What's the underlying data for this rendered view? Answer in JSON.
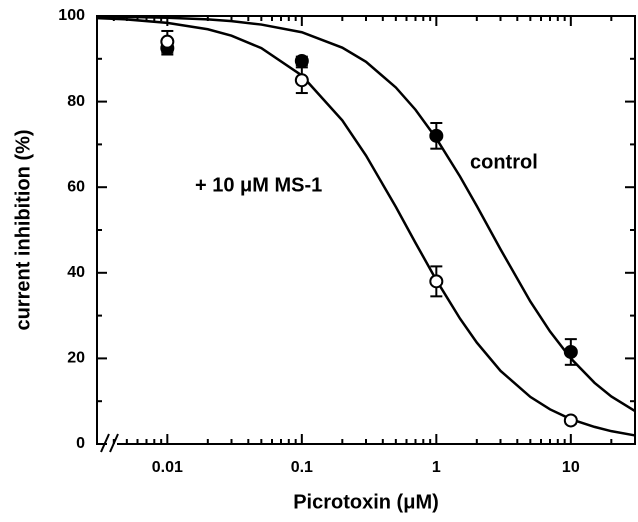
{
  "chart_data": {
    "type": "scatter",
    "xlabel": "Picrotoxin  (μM)",
    "ylabel": "current inhibition  (%)",
    "xscale": "log",
    "xlim": [
      0.003,
      30
    ],
    "ylim": [
      0,
      100
    ],
    "xticks": [
      0.01,
      0.1,
      1,
      10
    ],
    "xminor": [
      0.004,
      0.005,
      0.006,
      0.007,
      0.008,
      0.009,
      0.02,
      0.03,
      0.04,
      0.05,
      0.06,
      0.07,
      0.08,
      0.09,
      0.2,
      0.3,
      0.4,
      0.5,
      0.6,
      0.7,
      0.8,
      0.9,
      2,
      3,
      4,
      5,
      6,
      7,
      8,
      9,
      20
    ],
    "yticks": [
      0,
      20,
      40,
      60,
      80,
      100
    ],
    "yminor": [
      10,
      30,
      50,
      70,
      90
    ],
    "series": [
      {
        "name": "control",
        "color": "#000000",
        "marker": "filled",
        "x": [
          0.01,
          0.1,
          1,
          10
        ],
        "values": [
          92.5,
          89.5,
          72,
          21.5
        ],
        "errors": [
          1.5,
          1,
          3,
          3
        ],
        "curve": {
          "x": [
            0.003,
            0.005,
            0.01,
            0.02,
            0.03,
            0.05,
            0.1,
            0.2,
            0.3,
            0.5,
            0.7,
            1,
            1.5,
            2,
            3,
            5,
            7,
            10,
            15,
            20,
            30
          ],
          "values": [
            99.9,
            99.8,
            99.6,
            99.2,
            98.8,
            98.0,
            96.2,
            92.6,
            89.3,
            83.3,
            78.1,
            71.4,
            62.5,
            55.6,
            45.5,
            33.3,
            26.3,
            20.0,
            14.3,
            11.1,
            7.7
          ]
        }
      },
      {
        "name": "+ 10 μM MS-1",
        "color": "#000000",
        "marker": "open",
        "x": [
          0.01,
          0.1,
          1,
          10
        ],
        "values": [
          94,
          85,
          38,
          5.5
        ],
        "errors": [
          2.5,
          3,
          3.5,
          0.7
        ],
        "curve": {
          "x": [
            0.003,
            0.005,
            0.01,
            0.02,
            0.03,
            0.05,
            0.1,
            0.2,
            0.3,
            0.5,
            0.7,
            1,
            1.5,
            2,
            3,
            5,
            7,
            10,
            15,
            20,
            30
          ],
          "values": [
            99.5,
            99.2,
            98.4,
            96.9,
            95.4,
            92.5,
            86.1,
            75.6,
            67.4,
            55.4,
            47.0,
            38.3,
            29.3,
            23.7,
            17.1,
            11.0,
            8.1,
            5.8,
            4.0,
            3.0,
            2.0
          ]
        }
      }
    ]
  }
}
